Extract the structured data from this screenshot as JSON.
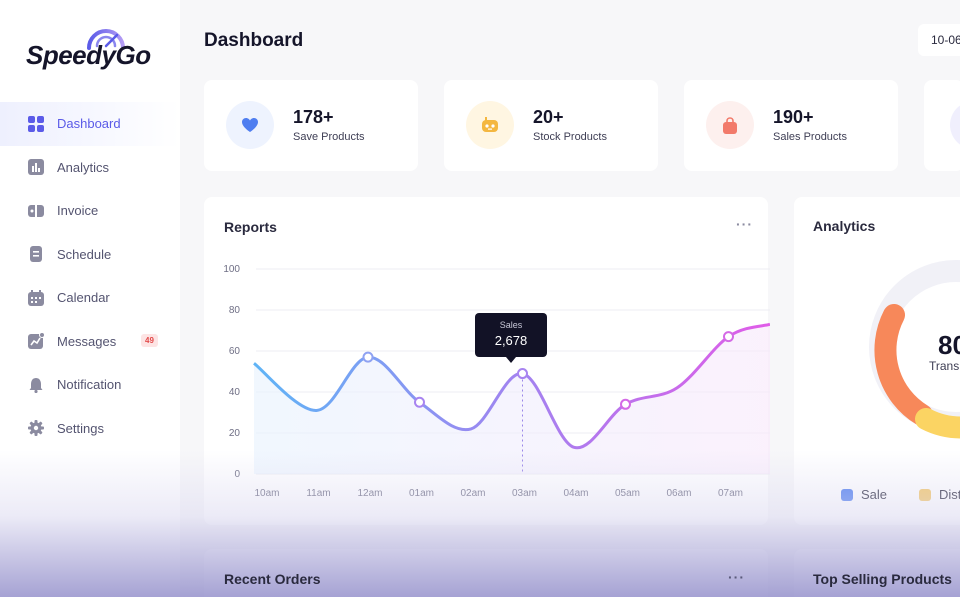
{
  "app": {
    "brand": "SpeedyGo"
  },
  "sidebar": {
    "items": [
      {
        "label": "Dashboard",
        "icon": "grid-icon",
        "active": true
      },
      {
        "label": "Analytics",
        "icon": "bar-chart-icon"
      },
      {
        "label": "Invoice",
        "icon": "invoice-icon"
      },
      {
        "label": "Schedule",
        "icon": "document-icon"
      },
      {
        "label": "Calendar",
        "icon": "calendar-icon"
      },
      {
        "label": "Messages",
        "icon": "messages-icon",
        "badge": "49"
      },
      {
        "label": "Notification",
        "icon": "bell-icon"
      },
      {
        "label": "Settings",
        "icon": "gear-icon"
      }
    ]
  },
  "header": {
    "title": "Dashboard",
    "date": "10-06"
  },
  "stats": [
    {
      "value": "178+",
      "label": "Save Products",
      "icon": "heart-icon",
      "icon_color": "#4f7ef0",
      "icon_bg": "#eef3fe"
    },
    {
      "value": "20+",
      "label": "Stock Products",
      "icon": "gamepad-icon",
      "icon_color": "#f4b740",
      "icon_bg": "#fff6e2"
    },
    {
      "value": "190+",
      "label": "Sales Products",
      "icon": "shopping-bag-icon",
      "icon_color": "#f27a6a",
      "icon_bg": "#fdf0ee"
    }
  ],
  "reports": {
    "title": "Reports",
    "menu": "···",
    "tooltip": {
      "label": "Sales",
      "value": "2,678"
    }
  },
  "chart_data": {
    "type": "line",
    "categories": [
      "10am",
      "11am",
      "12am",
      "01am",
      "02am",
      "03am",
      "04am",
      "05am",
      "06am",
      "07am"
    ],
    "series": [
      {
        "values": [
          54,
          31,
          57,
          35,
          22,
          49,
          13,
          34,
          42,
          67
        ]
      }
    ],
    "xlim_categories_extra": {
      "end_value": 73
    },
    "ylim": [
      0,
      100
    ],
    "yticks": [
      0,
      20,
      40,
      60,
      80,
      100
    ],
    "grid": true,
    "highlighted_points": [
      2,
      3,
      5,
      7,
      9
    ],
    "gradient": [
      "#5fb4f6",
      "#a084f0",
      "#e05ce8"
    ]
  },
  "analytics": {
    "title": "Analytics",
    "center_value": "80",
    "center_label": "Trans",
    "legend": [
      {
        "label": "Sale",
        "color": "#4f7ef0"
      },
      {
        "label": "Dist",
        "color": "#f4c767"
      }
    ],
    "colors": {
      "arc_orange": "#f7885a",
      "arc_yellow": "#fbd463",
      "track": "#f1f1f7"
    }
  },
  "bottom": {
    "recent_orders": "Recent Orders",
    "recent_menu": "···",
    "top_selling": "Top Selling Products"
  }
}
